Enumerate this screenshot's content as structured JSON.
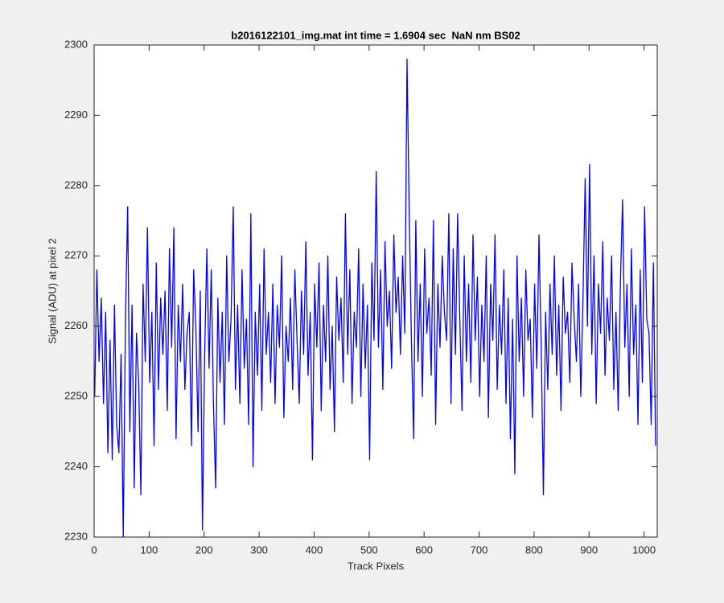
{
  "chart_data": {
    "type": "line",
    "title": "b2016122101_img.mat int time = 1.6904 sec  NaN nm BS02",
    "xlabel": "Track Pixels",
    "ylabel": "Signal (ADU) at pixel 2",
    "color": "#0000ff",
    "xlim": [
      0,
      1024
    ],
    "xticks": [
      0,
      100,
      200,
      300,
      400,
      500,
      600,
      700,
      800,
      900,
      1000
    ],
    "ylim": [
      2230,
      2300
    ],
    "yticks": [
      2230,
      2240,
      2250,
      2260,
      2270,
      2280,
      2290,
      2300
    ],
    "x": [
      1,
      5,
      9,
      13,
      17,
      21,
      25,
      29,
      33,
      37,
      41,
      45,
      49,
      53,
      57,
      61,
      65,
      69,
      73,
      77,
      81,
      85,
      89,
      93,
      97,
      101,
      105,
      109,
      113,
      117,
      121,
      125,
      129,
      133,
      137,
      141,
      145,
      149,
      153,
      157,
      161,
      165,
      169,
      173,
      177,
      181,
      185,
      189,
      193,
      197,
      201,
      205,
      209,
      213,
      217,
      221,
      225,
      229,
      233,
      237,
      241,
      245,
      249,
      253,
      257,
      261,
      265,
      269,
      273,
      277,
      281,
      285,
      289,
      293,
      297,
      301,
      305,
      309,
      313,
      317,
      321,
      325,
      329,
      333,
      337,
      341,
      345,
      349,
      353,
      357,
      361,
      365,
      369,
      373,
      377,
      381,
      385,
      389,
      393,
      397,
      401,
      405,
      409,
      413,
      417,
      421,
      425,
      429,
      433,
      437,
      441,
      445,
      449,
      453,
      457,
      461,
      465,
      469,
      473,
      477,
      481,
      485,
      489,
      493,
      497,
      501,
      505,
      509,
      513,
      517,
      521,
      525,
      529,
      533,
      537,
      541,
      545,
      549,
      553,
      557,
      561,
      565,
      569,
      573,
      577,
      581,
      585,
      589,
      593,
      597,
      601,
      605,
      609,
      613,
      617,
      621,
      625,
      629,
      633,
      637,
      641,
      645,
      649,
      653,
      657,
      661,
      665,
      669,
      673,
      677,
      681,
      685,
      689,
      693,
      697,
      701,
      705,
      709,
      713,
      717,
      721,
      725,
      729,
      733,
      737,
      741,
      745,
      749,
      753,
      757,
      761,
      765,
      769,
      773,
      777,
      781,
      785,
      789,
      793,
      797,
      801,
      805,
      809,
      813,
      817,
      821,
      825,
      829,
      833,
      837,
      841,
      845,
      849,
      853,
      857,
      861,
      865,
      869,
      873,
      877,
      881,
      885,
      889,
      893,
      897,
      901,
      905,
      909,
      913,
      917,
      921,
      925,
      929,
      933,
      937,
      941,
      945,
      949,
      953,
      957,
      961,
      965,
      969,
      973,
      977,
      981,
      985,
      989,
      993,
      997,
      1001,
      1005,
      1009,
      1013,
      1017,
      1021
    ],
    "values": [
      2250,
      2268,
      2255,
      2264,
      2249,
      2262,
      2242,
      2258,
      2241,
      2263,
      2246,
      2242,
      2256,
      2230,
      2261,
      2277,
      2245,
      2263,
      2237,
      2259,
      2252,
      2236,
      2266,
      2255,
      2274,
      2252,
      2262,
      2243,
      2269,
      2251,
      2264,
      2256,
      2265,
      2248,
      2271,
      2257,
      2274,
      2244,
      2263,
      2255,
      2266,
      2251,
      2259,
      2262,
      2243,
      2268,
      2260,
      2245,
      2265,
      2231,
      2256,
      2271,
      2254,
      2268,
      2249,
      2237,
      2264,
      2252,
      2262,
      2246,
      2270,
      2255,
      2261,
      2277,
      2251,
      2263,
      2249,
      2268,
      2254,
      2261,
      2246,
      2276,
      2240,
      2262,
      2253,
      2266,
      2248,
      2271,
      2256,
      2262,
      2252,
      2266,
      2249,
      2263,
      2257,
      2270,
      2247,
      2260,
      2255,
      2264,
      2251,
      2268,
      2258,
      2249,
      2265,
      2256,
      2272,
      2253,
      2262,
      2241,
      2266,
      2257,
      2269,
      2248,
      2263,
      2255,
      2270,
      2251,
      2260,
      2245,
      2267,
      2258,
      2264,
      2252,
      2276,
      2256,
      2268,
      2249,
      2262,
      2257,
      2271,
      2250,
      2266,
      2254,
      2263,
      2241,
      2269,
      2258,
      2282,
      2257,
      2268,
      2251,
      2272,
      2260,
      2265,
      2254,
      2273,
      2262,
      2267,
      2256,
      2270,
      2259,
      2298,
      2276,
      2258,
      2244,
      2275,
      2255,
      2266,
      2250,
      2271,
      2259,
      2264,
      2253,
      2275,
      2246,
      2266,
      2257,
      2270,
      2262,
      2258,
      2276,
      2249,
      2271,
      2256,
      2276,
      2261,
      2248,
      2270,
      2255,
      2266,
      2252,
      2273,
      2258,
      2267,
      2250,
      2263,
      2255,
      2270,
      2247,
      2266,
      2258,
      2273,
      2251,
      2263,
      2256,
      2268,
      2249,
      2264,
      2244,
      2261,
      2239,
      2270,
      2255,
      2264,
      2250,
      2268,
      2258,
      2261,
      2247,
      2266,
      2254,
      2273,
      2257,
      2236,
      2262,
      2251,
      2266,
      2256,
      2270,
      2253,
      2263,
      2248,
      2267,
      2259,
      2262,
      2252,
      2269,
      2261,
      2255,
      2266,
      2250,
      2264,
      2281,
      2260,
      2283,
      2256,
      2270,
      2249,
      2266,
      2259,
      2272,
      2253,
      2264,
      2258,
      2270,
      2251,
      2262,
      2248,
      2266,
      2278,
      2257,
      2266,
      2250,
      2271,
      2256,
      2263,
      2246,
      2268,
      2252,
      2277,
      2261,
      2259,
      2246,
      2269,
      2243
    ]
  }
}
